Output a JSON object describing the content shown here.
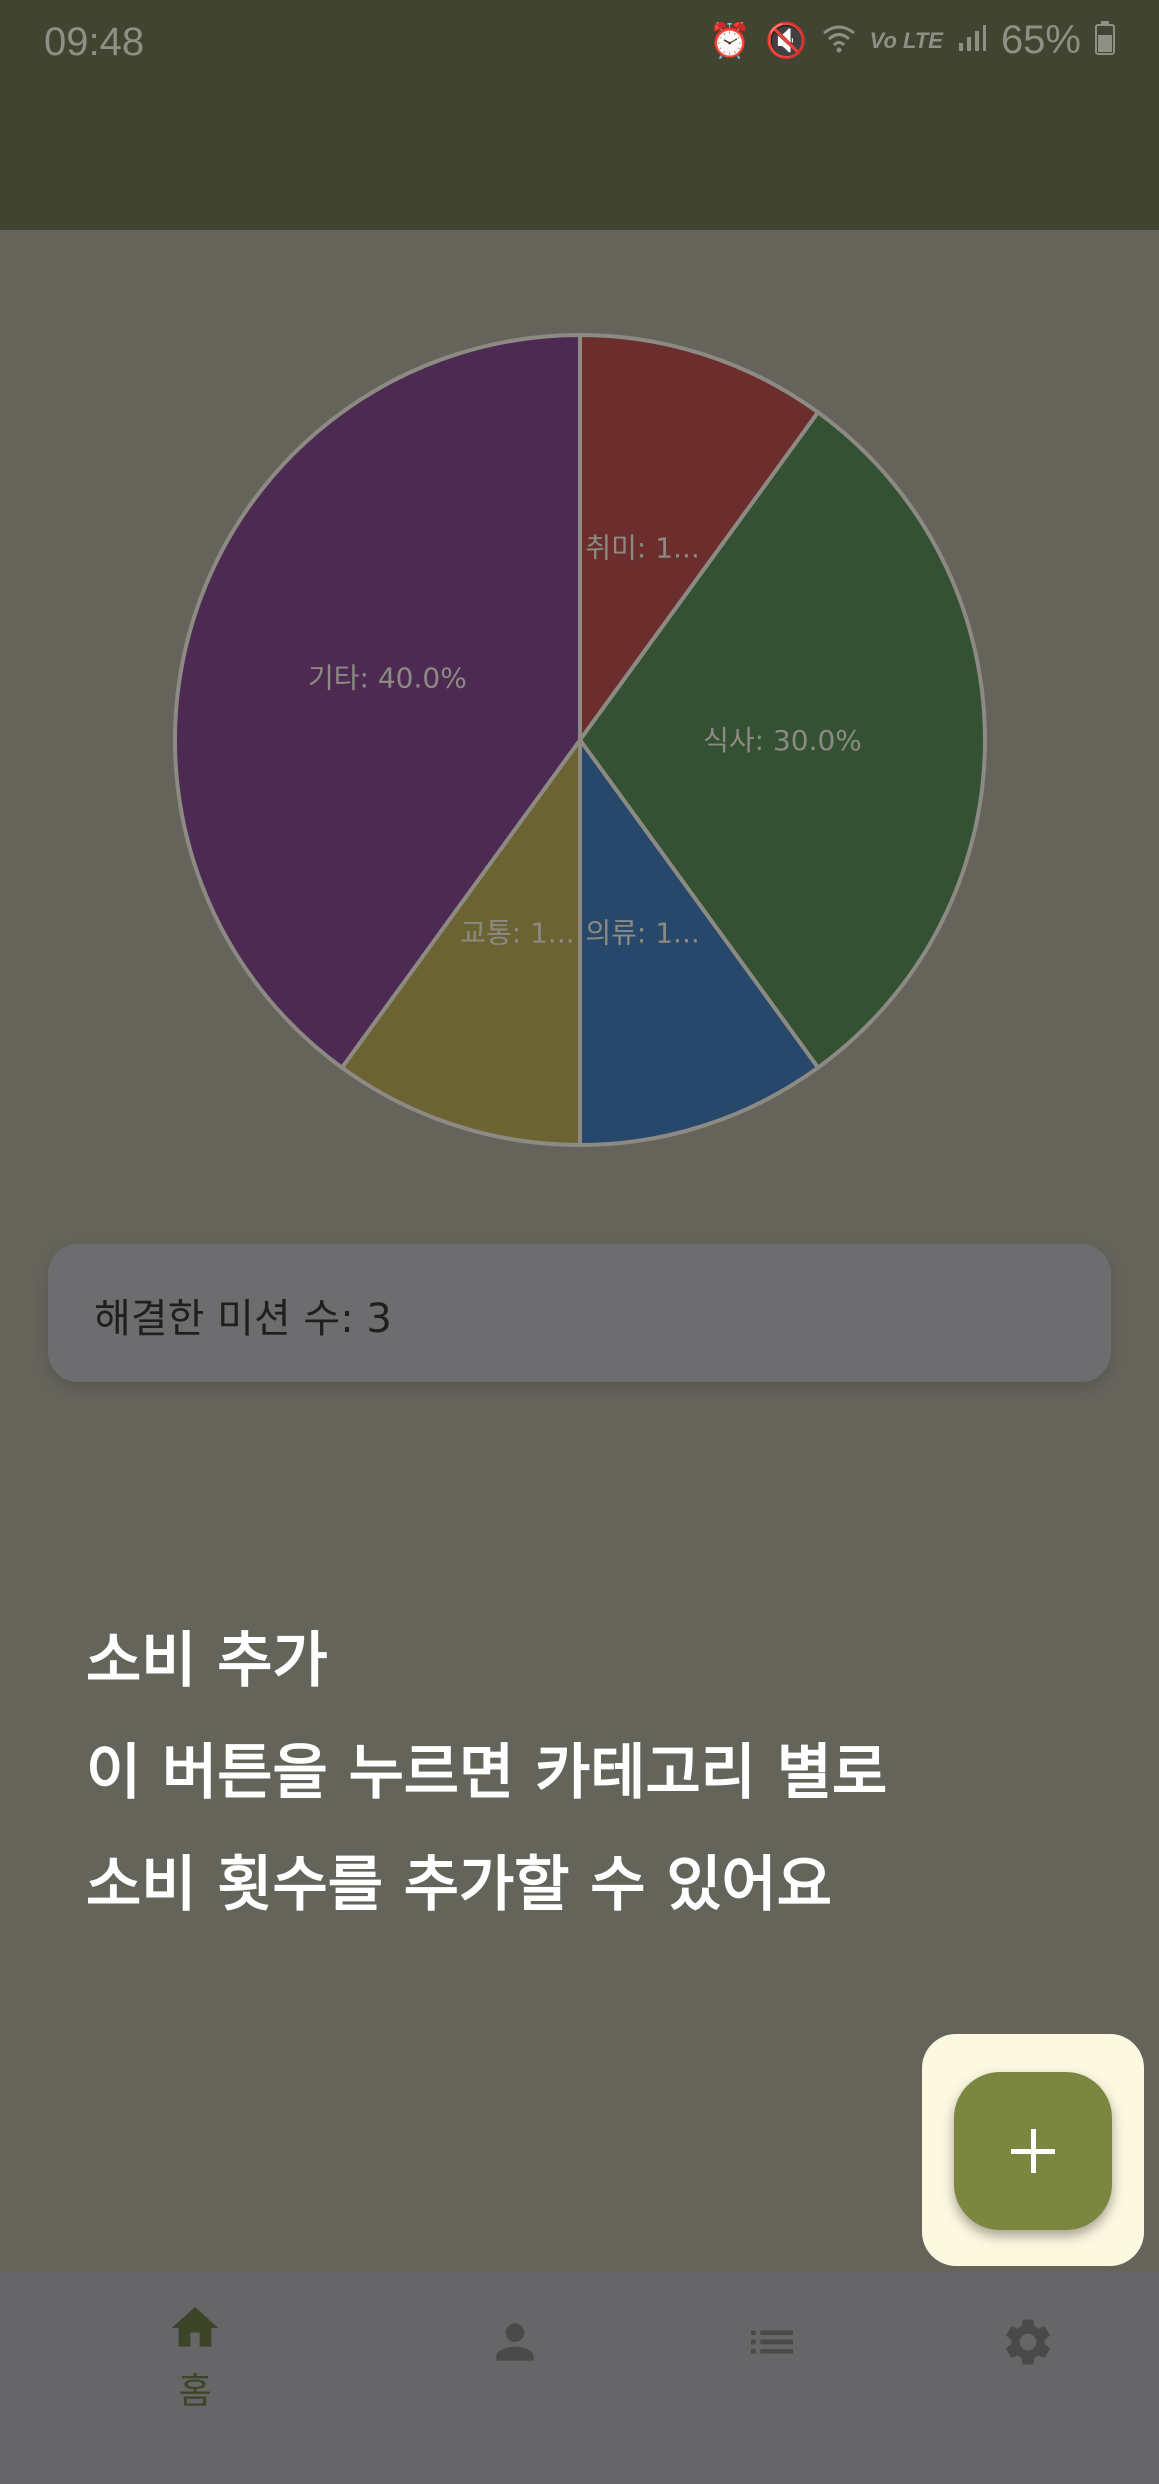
{
  "status_bar": {
    "time": "09:48",
    "battery": "65%",
    "icons": [
      "alarm-icon",
      "mute-icon",
      "wifi-icon",
      "lte-icon",
      "signal-icon",
      "battery-icon"
    ],
    "lte_label": "Vo LTE"
  },
  "chart_data": {
    "type": "pie",
    "slices": [
      {
        "label": "취미: 1...",
        "value": 10.0,
        "color": "#6b2e2c"
      },
      {
        "label": "식사: 30.0%",
        "value": 30.0,
        "color": "#345233"
      },
      {
        "label": "의류: 1...",
        "value": 10.0,
        "color": "#27486a"
      },
      {
        "label": "교통: 1...",
        "value": 10.0,
        "color": "#6b6432"
      },
      {
        "label": "기타: 40.0%",
        "value": 40.0,
        "color": "#4d2a52"
      }
    ],
    "separator_color": "#8c8a83"
  },
  "mission": {
    "text": "해결한 미션 수: 3"
  },
  "tutorial": {
    "title": "소비 추가",
    "line1": "이 버튼을 누르면 카테고리 별로",
    "line2": "소비 횟수를 추가할 수 있어요"
  },
  "fab": {
    "icon": "plus-icon",
    "highlight_color": "#fdf8e0",
    "color": "#7b8741"
  },
  "bottom_nav": {
    "items": [
      {
        "icon": "home-icon",
        "label": "홈"
      },
      {
        "icon": "person-icon"
      },
      {
        "icon": "list-icon"
      },
      {
        "icon": "gear-icon"
      }
    ],
    "active_color": "#3d4528",
    "inactive_color": "#4a4a4a"
  }
}
